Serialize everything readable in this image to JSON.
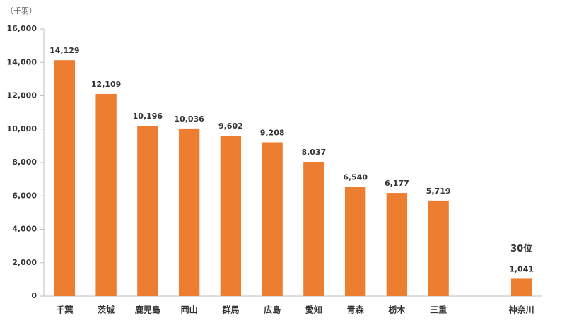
{
  "chart_data": {
    "type": "bar",
    "unit_label": "（千羽）",
    "categories": [
      "千葉",
      "茨城",
      "鹿児島",
      "岡山",
      "群馬",
      "広島",
      "愛知",
      "青森",
      "栃木",
      "三重",
      null,
      "神奈川"
    ],
    "values": [
      14129,
      12109,
      10196,
      10036,
      9602,
      9208,
      8037,
      6540,
      6177,
      5719,
      null,
      1041
    ],
    "value_labels": [
      "14,129",
      "12,109",
      "10,196",
      "10,036",
      "9,602",
      "9,208",
      "8,037",
      "6,540",
      "6,177",
      "5,719",
      null,
      "1,041"
    ],
    "annotation": "30位",
    "color": "#ed7d31",
    "ylim": [
      0,
      16000
    ],
    "yticks": [
      0,
      {
        "value": 2000,
        "label": "2,000"
      },
      {
        "value": 4000,
        "label": "4,000"
      },
      {
        "value": 6000,
        "label": "6,000"
      },
      {
        "value": 8000,
        "label": "8,000"
      },
      {
        "value": 10000,
        "label": "10,000"
      },
      {
        "value": 12000,
        "label": "12,000"
      },
      {
        "value": 14000,
        "label": "14,000"
      },
      {
        "value": 16000,
        "label": "16,000"
      }
    ],
    "grid": false
  }
}
